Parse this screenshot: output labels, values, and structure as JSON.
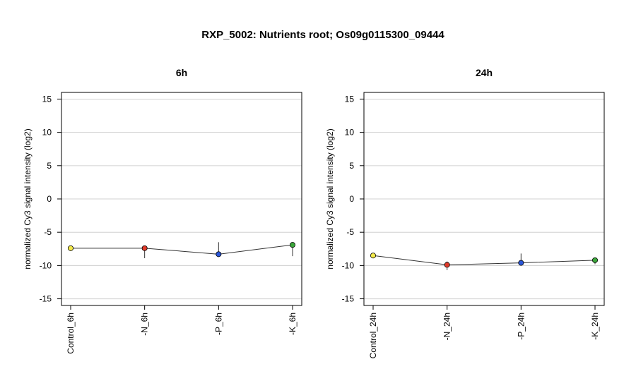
{
  "title": "RXP_5002: Nutrients root; Os09g0115300_09444",
  "chart_data": [
    {
      "type": "scatter",
      "title": "6h",
      "ylabel": "normalized Cy3 signal intensity (log2)",
      "ylim": [
        -16,
        16
      ],
      "yticks": [
        -15,
        -10,
        -5,
        0,
        5,
        10,
        15
      ],
      "grid": true,
      "categories": [
        "Control_6h",
        "-N_6h",
        "-P_6h",
        "-K_6h"
      ],
      "values": [
        -7.4,
        -7.4,
        -8.3,
        -6.9
      ],
      "error_low": [
        -7.8,
        -8.9,
        -8.5,
        -8.6
      ],
      "error_high": [
        -7.0,
        -7.1,
        -6.5,
        -6.6
      ],
      "colors": [
        "#f4ea4a",
        "#e03a2a",
        "#2a56d8",
        "#3aa63a"
      ]
    },
    {
      "type": "scatter",
      "title": "24h",
      "ylabel": "normalized Cy3 signal intensity (log2)",
      "ylim": [
        -16,
        16
      ],
      "yticks": [
        -15,
        -10,
        -5,
        0,
        5,
        10,
        15
      ],
      "grid": true,
      "categories": [
        "Control_24h",
        "-N_24h",
        "-P_24h",
        "-K_24h"
      ],
      "values": [
        -8.5,
        -9.9,
        -9.6,
        -9.2
      ],
      "error_low": [
        -8.7,
        -10.7,
        -9.8,
        -9.8
      ],
      "error_high": [
        -8.3,
        -9.4,
        -8.2,
        -9.0
      ],
      "colors": [
        "#f4ea4a",
        "#e03a2a",
        "#2a56d8",
        "#3aa63a"
      ]
    }
  ]
}
